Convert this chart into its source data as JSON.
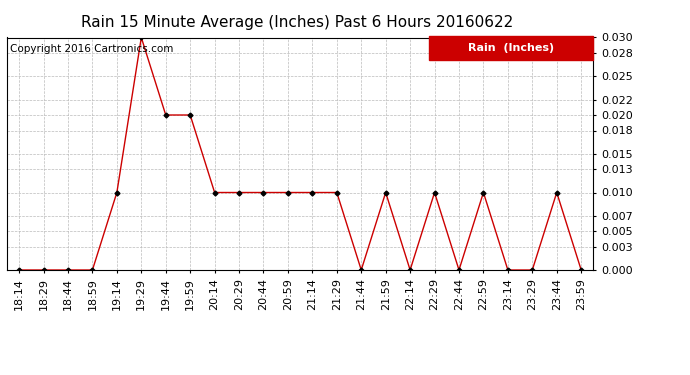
{
  "title": "Rain 15 Minute Average (Inches) Past 6 Hours 20160622",
  "copyright": "Copyright 2016 Cartronics.com",
  "legend_label": "Rain  (Inches)",
  "x_labels": [
    "18:14",
    "18:29",
    "18:44",
    "18:59",
    "19:14",
    "19:29",
    "19:44",
    "19:59",
    "20:14",
    "20:29",
    "20:44",
    "20:59",
    "21:14",
    "21:29",
    "21:44",
    "21:59",
    "22:14",
    "22:29",
    "22:44",
    "22:59",
    "23:14",
    "23:29",
    "23:44",
    "23:59"
  ],
  "y_values": [
    0.0,
    0.0,
    0.0,
    0.0,
    0.01,
    0.03,
    0.02,
    0.02,
    0.01,
    0.01,
    0.01,
    0.01,
    0.01,
    0.01,
    0.0,
    0.01,
    0.0,
    0.01,
    0.0,
    0.01,
    0.0,
    0.0,
    0.01,
    0.0
  ],
  "y_ticks": [
    0.0,
    0.003,
    0.005,
    0.007,
    0.01,
    0.013,
    0.015,
    0.018,
    0.02,
    0.022,
    0.025,
    0.028,
    0.03
  ],
  "line_color": "#cc0000",
  "marker_color": "#000000",
  "legend_bg": "#cc0000",
  "legend_text_color": "#ffffff",
  "grid_color": "#bbbbbb",
  "background_color": "#ffffff",
  "title_fontsize": 11,
  "copyright_fontsize": 7.5,
  "tick_fontsize": 8,
  "legend_fontsize": 8,
  "ylim": [
    0,
    0.03
  ]
}
